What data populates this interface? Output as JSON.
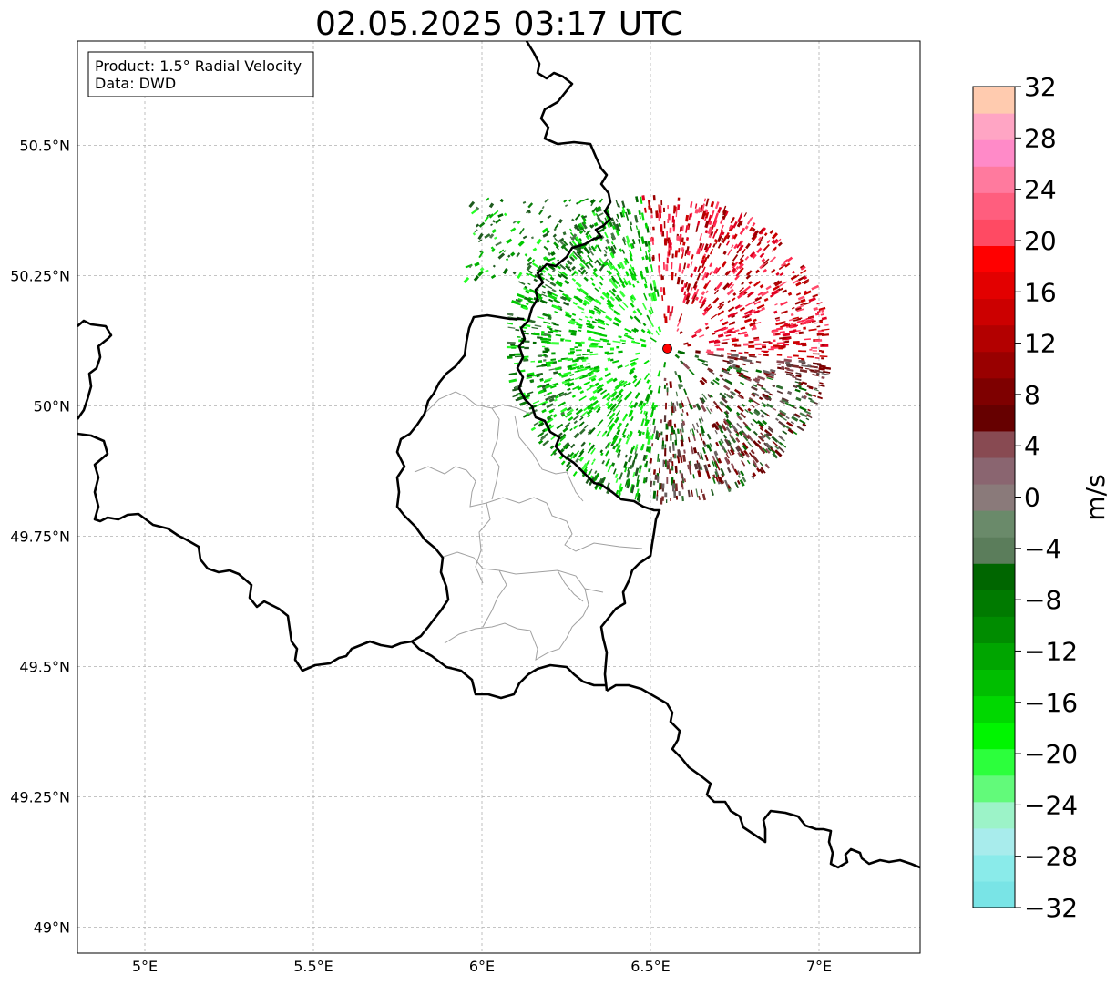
{
  "title": "02.05.2025 03:17 UTC",
  "info_box": {
    "product": "Product: 1.5° Radial Velocity",
    "source": "Data: DWD"
  },
  "map": {
    "lon_range": [
      4.8,
      7.3
    ],
    "lat_range": [
      48.95,
      50.7
    ],
    "lon_ticks": [
      {
        "value": 5.0,
        "label": "5°E"
      },
      {
        "value": 5.5,
        "label": "5.5°E"
      },
      {
        "value": 6.0,
        "label": "6°E"
      },
      {
        "value": 6.5,
        "label": "6.5°E"
      },
      {
        "value": 7.0,
        "label": "7°E"
      }
    ],
    "lat_ticks": [
      {
        "value": 50.5,
        "label": "50.5°N"
      },
      {
        "value": 50.25,
        "label": "50.25°N"
      },
      {
        "value": 50.0,
        "label": "50°N"
      },
      {
        "value": 49.75,
        "label": "49.75°N"
      },
      {
        "value": 49.5,
        "label": "49.5°N"
      },
      {
        "value": 49.25,
        "label": "49.25°N"
      },
      {
        "value": 49.0,
        "label": "49°N"
      }
    ],
    "gridlines": true,
    "radar_site": {
      "lon": 6.55,
      "lat": 50.11,
      "color": "#ff0000"
    },
    "colors": {
      "borders": "#000000",
      "districts": "#a0a0a0",
      "grid": "#b0b0b0"
    }
  },
  "colorbar": {
    "label": "m/s",
    "min": -32,
    "max": 32,
    "ticks": [
      {
        "value": 32,
        "label": "32"
      },
      {
        "value": 28,
        "label": "28"
      },
      {
        "value": 24,
        "label": "24"
      },
      {
        "value": 20,
        "label": "20"
      },
      {
        "value": 16,
        "label": "16"
      },
      {
        "value": 12,
        "label": "12"
      },
      {
        "value": 8,
        "label": "8"
      },
      {
        "value": 4,
        "label": "4"
      },
      {
        "value": 0,
        "label": "0"
      },
      {
        "value": -4,
        "label": "−4"
      },
      {
        "value": -8,
        "label": "−8"
      },
      {
        "value": -12,
        "label": "−12"
      },
      {
        "value": -16,
        "label": "−16"
      },
      {
        "value": -20,
        "label": "−20"
      },
      {
        "value": -24,
        "label": "−24"
      },
      {
        "value": -28,
        "label": "−28"
      },
      {
        "value": -32,
        "label": "−32"
      }
    ],
    "colors": [
      "#79e4e6",
      "#8aebea",
      "#a8ecec",
      "#9cf3c8",
      "#62fa7a",
      "#2cff3c",
      "#00f500",
      "#00d800",
      "#00be00",
      "#00a500",
      "#008c00",
      "#007a00",
      "#006600",
      "#5b7d5b",
      "#6a8a6a",
      "#8a7a7a",
      "#8a6570",
      "#884a52",
      "#660000",
      "#7e0000",
      "#990000",
      "#b30000",
      "#cc0000",
      "#e30000",
      "#ff0000",
      "#ff4a63",
      "#ff5e7e",
      "#ff7a9e",
      "#ff8ac8",
      "#ffa5c4",
      "#ffcbaf"
    ]
  }
}
